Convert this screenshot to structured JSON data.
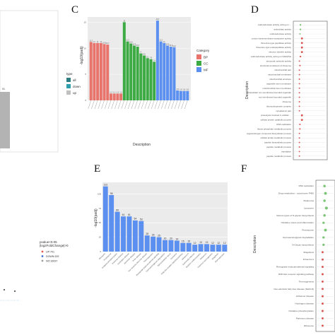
{
  "panels": {
    "c_letter": "C",
    "d_letter": "D",
    "e_letter": "E",
    "f_letter": "F"
  },
  "panel_a": {
    "legend_title": "type",
    "legend_items": [
      "all",
      "down",
      "up"
    ],
    "legend_colors": [
      "#2e7d83",
      "#2f9fb0",
      "#c0c0c0"
    ],
    "bar_label": "01"
  },
  "panel_b": {
    "legend_lines": [
      "pvalue<0.05",
      "|log2FoldChange|>0"
    ],
    "legend_items": [
      "UP:701",
      "DOWN:329",
      "NO:16097"
    ],
    "legend_colors": [
      "#e05a4f",
      "#3f6fd1",
      "#9e9e9e"
    ]
  },
  "colors": {
    "BP": "#e8746c",
    "CC": "#3dab43",
    "MF": "#5b8ff0",
    "E": "#5b8ff0",
    "dot_red": "#d9534f",
    "dot_green": "#7cc576"
  },
  "chart_data": [
    {
      "panel": "C",
      "type": "bar",
      "xlabel": "Description",
      "ylabel": "-log10(padj)",
      "ylim": [
        0,
        16
      ],
      "yticks": [
        0,
        5,
        10,
        15
      ],
      "legend_title": "Category",
      "legend_entries": [
        "BP",
        "CC",
        "MF"
      ],
      "series": [
        {
          "name": "BP",
          "values": [
            11.2,
            11.0,
            11.0,
            11.0,
            10.8,
            10.7,
            1.3,
            1.3,
            1.3,
            1.3
          ]
        },
        {
          "name": "CC",
          "values": [
            15.0,
            11.3,
            10.9,
            10.5,
            10.3,
            9.0,
            8.6,
            8.1,
            7.9,
            7.4
          ]
        },
        {
          "name": "MF",
          "values": [
            15.3,
            11.3,
            11.0,
            10.5,
            10.3,
            10.2,
            1.9,
            1.8,
            1.8,
            1.8
          ]
        }
      ],
      "value_labels": [
        "11.2",
        "11",
        "11",
        "11",
        "10.8",
        "10.7",
        "1.3",
        "1.3",
        "1.3",
        "1.3",
        "15",
        "11.3",
        "10.9",
        "10.5",
        "10.3",
        "9",
        "8.6",
        "8.1",
        "7.9",
        "7.4",
        "15.3",
        "11.3",
        "11",
        "10.5",
        "10.3",
        "10.2",
        "1.9",
        "1.8",
        "1.8",
        "1.8"
      ]
    },
    {
      "panel": "D",
      "type": "scatter",
      "ylabel": "Description",
      "categories": [
        "oxidoreductase activity, acting on ...",
        "antioxidant activity",
        "oxidoreductase activity",
        "proton transmembrane transporter activity",
        "threonine-type peptidase activity",
        "threonine-type endopeptidase activity",
        "electron transfer activity",
        "oxidoreductase activity, acting on NAD(P)H",
        "structural molecule activity",
        "structural constituent of ribosome",
        "mitochondrial part",
        "mitochondrial membrane",
        "mitochondrial envelope",
        "organelle inner membrane",
        "mitochondrial inner membrane",
        "intracellular non-membrane-bounded organelle",
        "non-membrane-bounded organelle",
        "ribosome",
        "ribonucleoprotein complex",
        "cytoplasmic part",
        "proteolysis involved in cellular ...",
        "cellular protein catabolic process",
        "DNA replication",
        "ribose phosphate metabolic process",
        "organonitrogen compound biosynthetic process",
        "cellular amide metabolic process",
        "peptide biosynthetic process",
        "peptide metabolic process",
        "translation",
        "peptide metabolic process"
      ],
      "dot_values": [
        0.6,
        0.6,
        0.5,
        0.9,
        0.9,
        0.9,
        0.9,
        0.6,
        0.4,
        0.5,
        0.4,
        0.4,
        0.4,
        0.4,
        0.4,
        0.4,
        0.4,
        0.4,
        0.4,
        0.4,
        0.9,
        0.9,
        0.5,
        0.5,
        0.4,
        0.4,
        0.4,
        0.4,
        0.4,
        0.4
      ],
      "dot_colors": [
        "green",
        "green",
        "green",
        "red",
        "red",
        "red",
        "red",
        "red",
        "red",
        "red",
        "red",
        "red",
        "red",
        "red",
        "red",
        "red",
        "red",
        "red",
        "red",
        "red",
        "red",
        "red",
        "red",
        "red",
        "red",
        "red",
        "red",
        "red",
        "red",
        "red"
      ]
    },
    {
      "panel": "E",
      "type": "bar",
      "xlabel": "",
      "ylabel": "-log10(padj)",
      "ylim": [
        0,
        120
      ],
      "yticks": [
        0,
        25,
        50,
        75,
        100
      ],
      "categories": [
        "Ribosome",
        "Proteasome",
        "Oxidative phosphorylation",
        "Parkinson disease",
        "Huntington disease",
        "Alzheimer disease",
        "Prion disease",
        "Non-alcoholic fatty liver disease",
        "Thermogenesis",
        "Retrograde endocannabinoid signaling",
        "Glycosaminoglycan degradation",
        "Spinocerebellar ataxia",
        "Lysosome",
        "NOD-like receptor signaling pathway",
        "Influenza A",
        "Salmonella infection",
        "Diabetic cardiomyopathy",
        "Melanoma",
        "Chemical carcinogenesis",
        "Shigellosis",
        "DNA replication"
      ],
      "values": [
        113,
        98,
        69,
        61,
        61,
        54,
        53,
        28,
        26,
        25,
        20,
        20,
        19,
        15,
        15,
        12,
        13,
        13,
        12,
        12,
        12
      ],
      "value_labels": [
        "113",
        "98",
        "69",
        "61",
        "61",
        "54",
        "53",
        "28",
        "26",
        "25",
        "20",
        "20",
        "19",
        "15",
        "15",
        "12",
        "13",
        "13",
        "12",
        "12",
        "12"
      ]
    },
    {
      "panel": "F",
      "type": "scatter",
      "ylabel": "Description",
      "categories": [
        "DNA replication",
        "Drug metabolism - cytochrome P450",
        "Melanoma",
        "Lysosome",
        "Various types of N-glycan biosynthesis",
        "Oxidative stress and inflammation",
        "Proteasome",
        "Glycosaminoglycan degradation",
        "N-Glycan biosynthesis",
        "Shigellosis",
        "Influenza A",
        "Retrograde endocannabinoid signaling",
        "NOD-like receptor signaling pathway",
        "Thermogenesis",
        "Non-alcoholic fatty liver disease (NAFLD)",
        "Alzheimer disease",
        "Huntington disease",
        "Oxidative phosphorylation",
        "Parkinson disease",
        "Ribosome"
      ],
      "dot_values": [
        0.6,
        0.7,
        0.6,
        0.8,
        0.6,
        0.5,
        0.7,
        0.5,
        0.5,
        0.4,
        0.4,
        0.4,
        0.4,
        0.4,
        0.4,
        0.4,
        0.4,
        0.4,
        0.4,
        0.4
      ],
      "dot_colors": [
        "green",
        "green",
        "green",
        "green",
        "green",
        "green",
        "green",
        "green",
        "green",
        "red",
        "red",
        "red",
        "red",
        "red",
        "red",
        "red",
        "red",
        "red",
        "red",
        "red"
      ]
    }
  ]
}
